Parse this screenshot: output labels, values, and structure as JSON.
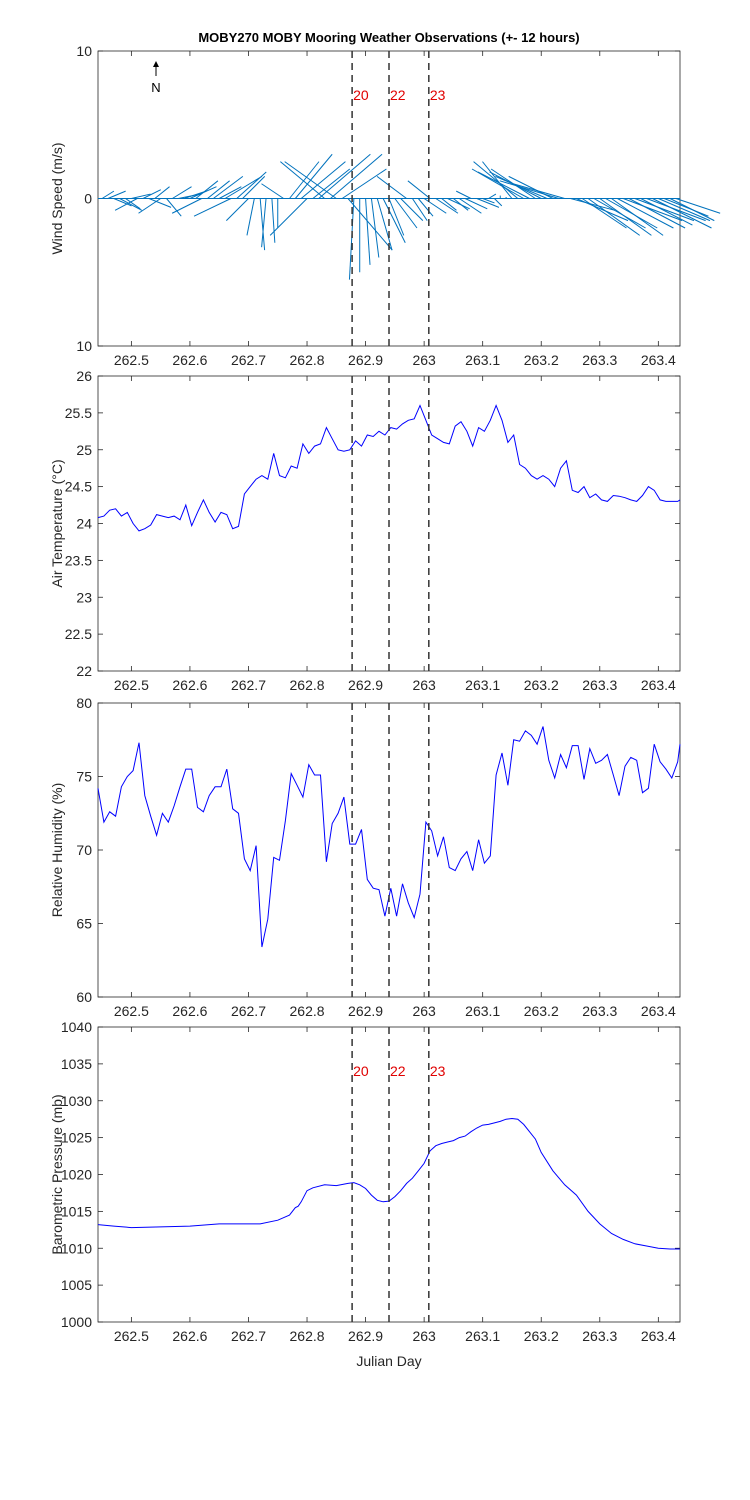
{
  "title": "MOBY270 MOBY Mooring Weather Observations (+- 12 hours)",
  "colors": {
    "series": "#0000ff",
    "wind": "#0072bd",
    "event": "#e00000",
    "axis": "#262626"
  },
  "chart_data": [
    {
      "id": "wind",
      "type": "line",
      "ylabel": "Wind Speed (m/s)",
      "ylim": [
        -10,
        10
      ],
      "yticks": [
        10,
        0,
        -10
      ],
      "ytick_labels": [
        "10",
        "0",
        "10"
      ],
      "xlim": [
        262.443,
        263.437
      ],
      "xticks": [
        262.5,
        262.6,
        262.7,
        262.8,
        262.9,
        263,
        263.1,
        263.2,
        263.3,
        263.4
      ],
      "xtick_labels": [
        "262.5",
        "262.6",
        "262.7",
        "262.8",
        "262.9",
        "263",
        "263.1",
        "263.2",
        "263.3",
        "263.4"
      ],
      "north_label": "N",
      "event_lines": [
        262.877,
        262.94,
        263.008
      ],
      "event_labels": [
        "20",
        "22",
        "23"
      ],
      "vectors": {
        "x": [
          262.45,
          262.46,
          262.47,
          262.48,
          262.49,
          262.5,
          262.51,
          262.52,
          262.53,
          262.54,
          262.55,
          262.56,
          262.57,
          262.58,
          262.59,
          262.6,
          262.61,
          262.62,
          262.63,
          262.64,
          262.65,
          262.66,
          262.67,
          262.68,
          262.69,
          262.7,
          262.71,
          262.72,
          262.73,
          262.74,
          262.75,
          262.76,
          262.77,
          262.78,
          262.79,
          262.8,
          262.81,
          262.82,
          262.83,
          262.84,
          262.85,
          262.86,
          262.87,
          262.88,
          262.89,
          262.9,
          262.91,
          262.92,
          262.93,
          262.94,
          262.95,
          262.96,
          262.97,
          262.98,
          262.99,
          263.0,
          263.01,
          263.02,
          263.03,
          263.04,
          263.05,
          263.06,
          263.07,
          263.08,
          263.09,
          263.1,
          263.11,
          263.12,
          263.13,
          263.14,
          263.15,
          263.16,
          263.17,
          263.18,
          263.19,
          263.2,
          263.21,
          263.22,
          263.23,
          263.24,
          263.25,
          263.26,
          263.27,
          263.28,
          263.29,
          263.3,
          263.31,
          263.32,
          263.33,
          263.34,
          263.35,
          263.36,
          263.37,
          263.38,
          263.39,
          263.4,
          263.41,
          263.42,
          263.43
        ],
        "u": [
          0.8,
          1.2,
          1.2,
          1.5,
          1.0,
          1.3,
          -1.5,
          1.2,
          1.5,
          1.0,
          -1.5,
          1.0,
          1.3,
          1.5,
          1.5,
          1.8,
          1.5,
          -2.0,
          1.5,
          2.0,
          1.5,
          2.5,
          -2.5,
          2.0,
          1.5,
          -1.5,
          -0.5,
          0.3,
          -0.3,
          0.2,
          0.0,
          -1.5,
          2.0,
          2.5,
          3.0,
          -2.5,
          2.5,
          3.5,
          -3.0,
          3.5,
          -3.5,
          3.0,
          3.0,
          -0.3,
          0.0,
          0.3,
          0.5,
          1.0,
          1.5,
          1.0,
          1.5,
          1.5,
          -2.0,
          1.0,
          1.0,
          1.5,
          -1.5,
          1.5,
          1.0,
          1.5,
          1.0,
          1.5,
          1.5,
          -1.0,
          1.5,
          0.8,
          0.5,
          0.5,
          0.0,
          0.0,
          -2.0,
          -3.0,
          -3.5,
          -3.5,
          -3.0,
          -3.5,
          -3.5,
          -3.0,
          -4.0,
          -3.5,
          3.0,
          3.5,
          3.0,
          3.5,
          3.5,
          3.5,
          3.5,
          3.5,
          3.8,
          4.0,
          3.8,
          4.0,
          3.5,
          4.0,
          4.0,
          3.5,
          3.0,
          3.0,
          3.0
        ],
        "v": [
          0.5,
          0.5,
          -0.5,
          -0.8,
          -0.7,
          0.3,
          -0.8,
          0.6,
          -0.6,
          0.8,
          -1.0,
          -1.2,
          0.8,
          0.3,
          0.5,
          0.8,
          1.2,
          -1.0,
          1.2,
          1.5,
          0.8,
          1.5,
          -1.2,
          1.8,
          1.5,
          -1.5,
          -2.5,
          -3.5,
          -3.3,
          -3.0,
          -2.0,
          1.0,
          2.5,
          3.0,
          2.5,
          -2.5,
          2.0,
          3.0,
          2.5,
          3.0,
          2.5,
          2.0,
          -3.5,
          -5.5,
          -5.0,
          -4.5,
          -4.0,
          -3.5,
          -3.0,
          -2.5,
          -2.0,
          -1.5,
          1.5,
          -1.5,
          -1.2,
          -1.0,
          1.2,
          -1.0,
          -0.8,
          -0.7,
          -0.8,
          -1.0,
          -0.7,
          0.5,
          -0.6,
          -0.3,
          0.3,
          -0.5,
          0.2,
          0.1,
          2.5,
          2.5,
          2.0,
          1.8,
          2.0,
          1.8,
          1.5,
          1.5,
          1.2,
          1.0,
          -0.8,
          -1.5,
          -2.0,
          -2.5,
          -2.0,
          -2.5,
          -2.0,
          -2.5,
          -2.0,
          -1.5,
          -2.0,
          -1.5,
          -1.8,
          -1.5,
          -2.0,
          -1.5,
          -1.2,
          -1.5,
          -1.0
        ]
      }
    },
    {
      "id": "temp",
      "type": "line",
      "ylabel": "Air Temperature (°C)",
      "ylim": [
        22,
        26
      ],
      "yticks": [
        26,
        25.5,
        25,
        24.5,
        24,
        23.5,
        23,
        22.5,
        22
      ],
      "ytick_labels": [
        "26",
        "25.5",
        "25",
        "24.5",
        "24",
        "23.5",
        "23",
        "22.5",
        "22"
      ],
      "xlim": [
        262.443,
        263.437
      ],
      "xticks": [
        262.5,
        262.6,
        262.7,
        262.8,
        262.9,
        263,
        263.1,
        263.2,
        263.3,
        263.4
      ],
      "xtick_labels": [
        "262.5",
        "262.6",
        "262.7",
        "262.8",
        "262.9",
        "263",
        "263.1",
        "263.2",
        "263.3",
        "263.4"
      ],
      "event_lines": [
        262.877,
        262.94,
        263.008
      ],
      "event_labels": [],
      "x": [
        262.443,
        262.453,
        262.463,
        262.473,
        262.483,
        262.493,
        262.503,
        262.513,
        262.523,
        262.533,
        262.543,
        262.553,
        262.563,
        262.573,
        262.583,
        262.593,
        262.603,
        262.613,
        262.623,
        262.633,
        262.643,
        262.653,
        262.663,
        262.673,
        262.683,
        262.693,
        262.703,
        262.713,
        262.723,
        262.733,
        262.743,
        262.753,
        262.763,
        262.773,
        262.783,
        262.793,
        262.803,
        262.813,
        262.823,
        262.833,
        262.843,
        262.853,
        262.863,
        262.873,
        262.883,
        262.893,
        262.903,
        262.913,
        262.923,
        262.933,
        262.943,
        262.953,
        262.963,
        262.973,
        262.983,
        262.993,
        263.003,
        263.013,
        263.023,
        263.033,
        263.043,
        263.053,
        263.063,
        263.073,
        263.083,
        263.093,
        263.103,
        263.113,
        263.123,
        263.133,
        263.143,
        263.153,
        263.163,
        263.173,
        263.183,
        263.193,
        263.203,
        263.213,
        263.223,
        263.233,
        263.243,
        263.253,
        263.263,
        263.273,
        263.283,
        263.293,
        263.303,
        263.313,
        263.323,
        263.333,
        263.343,
        263.353,
        263.363,
        263.373,
        263.383,
        263.393,
        263.403,
        263.413,
        263.423,
        263.433,
        263.437
      ],
      "y": [
        24.08,
        24.1,
        24.18,
        24.2,
        24.1,
        24.15,
        24.0,
        23.9,
        23.93,
        23.98,
        24.12,
        24.1,
        24.08,
        24.1,
        24.05,
        24.25,
        23.97,
        24.15,
        24.32,
        24.15,
        24.02,
        24.15,
        24.12,
        23.93,
        23.96,
        24.4,
        24.5,
        24.6,
        24.65,
        24.6,
        24.95,
        24.65,
        24.62,
        24.78,
        24.75,
        25.08,
        24.95,
        25.05,
        25.08,
        25.3,
        25.15,
        25.0,
        24.98,
        25.0,
        25.12,
        25.05,
        25.2,
        25.18,
        25.25,
        25.2,
        25.3,
        25.28,
        25.35,
        25.4,
        25.42,
        25.6,
        25.4,
        25.2,
        25.15,
        25.1,
        25.08,
        25.32,
        25.38,
        25.25,
        25.05,
        25.3,
        25.25,
        25.4,
        25.6,
        25.4,
        25.1,
        25.2,
        24.8,
        24.75,
        24.65,
        24.6,
        24.65,
        24.6,
        24.5,
        24.75,
        24.85,
        24.45,
        24.42,
        24.5,
        24.35,
        24.4,
        24.32,
        24.3,
        24.38,
        24.37,
        24.35,
        24.32,
        24.3,
        24.38,
        24.5,
        24.45,
        24.32,
        24.3,
        24.3,
        24.3,
        24.32
      ]
    },
    {
      "id": "rh",
      "type": "line",
      "ylabel": "Relative Humidity (%)",
      "ylim": [
        60,
        80
      ],
      "yticks": [
        80,
        75,
        70,
        65,
        60
      ],
      "ytick_labels": [
        "80",
        "75",
        "70",
        "65",
        "60"
      ],
      "xlim": [
        262.443,
        263.437
      ],
      "xticks": [
        262.5,
        262.6,
        262.7,
        262.8,
        262.9,
        263,
        263.1,
        263.2,
        263.3,
        263.4
      ],
      "xtick_labels": [
        "262.5",
        "262.6",
        "262.7",
        "262.8",
        "262.9",
        "263",
        "263.1",
        "263.2",
        "263.3",
        "263.4"
      ],
      "event_lines": [
        262.877,
        262.94,
        263.008
      ],
      "event_labels": [],
      "x": [
        262.443,
        262.453,
        262.463,
        262.473,
        262.483,
        262.493,
        262.503,
        262.513,
        262.523,
        262.533,
        262.543,
        262.553,
        262.563,
        262.573,
        262.583,
        262.593,
        262.603,
        262.613,
        262.623,
        262.633,
        262.643,
        262.653,
        262.663,
        262.673,
        262.683,
        262.693,
        262.703,
        262.713,
        262.723,
        262.733,
        262.743,
        262.753,
        262.763,
        262.773,
        262.783,
        262.793,
        262.803,
        262.813,
        262.823,
        262.833,
        262.843,
        262.853,
        262.863,
        262.873,
        262.883,
        262.893,
        262.903,
        262.913,
        262.923,
        262.933,
        262.943,
        262.953,
        262.963,
        262.973,
        262.983,
        262.993,
        263.003,
        263.013,
        263.023,
        263.033,
        263.043,
        263.053,
        263.063,
        263.073,
        263.083,
        263.093,
        263.103,
        263.113,
        263.123,
        263.133,
        263.143,
        263.153,
        263.163,
        263.173,
        263.183,
        263.193,
        263.203,
        263.213,
        263.223,
        263.233,
        263.243,
        263.253,
        263.263,
        263.273,
        263.283,
        263.293,
        263.303,
        263.313,
        263.323,
        263.333,
        263.343,
        263.353,
        263.363,
        263.373,
        263.383,
        263.393,
        263.403,
        263.413,
        263.423,
        263.433,
        263.437
      ],
      "y": [
        74.2,
        71.9,
        72.6,
        72.3,
        74.3,
        75.0,
        75.4,
        77.3,
        73.7,
        72.3,
        71.0,
        72.5,
        71.9,
        73.0,
        74.3,
        75.5,
        75.5,
        72.9,
        72.6,
        73.7,
        74.3,
        74.3,
        75.5,
        72.8,
        72.5,
        69.4,
        68.6,
        70.3,
        63.4,
        65.3,
        69.5,
        69.3,
        72.0,
        75.2,
        74.4,
        73.6,
        75.8,
        75.1,
        75.1,
        69.2,
        71.8,
        72.5,
        73.6,
        70.4,
        70.4,
        71.4,
        68.0,
        67.4,
        67.3,
        65.5,
        67.4,
        65.5,
        67.7,
        66.4,
        65.4,
        67.0,
        71.9,
        71.3,
        69.6,
        70.9,
        68.8,
        68.6,
        69.4,
        69.9,
        68.6,
        70.7,
        69.1,
        69.6,
        75.1,
        76.6,
        74.4,
        77.5,
        77.4,
        78.1,
        77.8,
        77.2,
        78.4,
        76.1,
        74.9,
        76.5,
        75.6,
        77.1,
        77.1,
        74.8,
        76.9,
        75.9,
        76.1,
        76.5,
        75.1,
        73.7,
        75.7,
        76.3,
        76.1,
        73.9,
        74.2,
        77.2,
        76.0,
        75.5,
        74.9,
        76.0,
        77.2
      ]
    },
    {
      "id": "pressure",
      "type": "line",
      "ylabel": "Barometric Pressure (mb)",
      "xlabel": "Julian Day",
      "ylim": [
        1000,
        1040
      ],
      "yticks": [
        1040,
        1035,
        1030,
        1025,
        1020,
        1015,
        1010,
        1005,
        1000
      ],
      "ytick_labels": [
        "1040",
        "1035",
        "1030",
        "1025",
        "1020",
        "1015",
        "1010",
        "1005",
        "1000"
      ],
      "xlim": [
        262.443,
        263.437
      ],
      "xticks": [
        262.5,
        262.6,
        262.7,
        262.8,
        262.9,
        263,
        263.1,
        263.2,
        263.3,
        263.4
      ],
      "xtick_labels": [
        "262.5",
        "262.6",
        "262.7",
        "262.8",
        "262.9",
        "263",
        "263.1",
        "263.2",
        "263.3",
        "263.4"
      ],
      "event_lines": [
        262.877,
        262.94,
        263.008
      ],
      "event_labels": [
        "20",
        "22",
        "23"
      ],
      "x": [
        262.443,
        262.47,
        262.5,
        262.55,
        262.6,
        262.65,
        262.7,
        262.72,
        262.75,
        262.77,
        262.78,
        262.785,
        262.79,
        262.8,
        262.81,
        262.83,
        262.85,
        262.87,
        262.88,
        262.89,
        262.9,
        262.91,
        262.92,
        262.93,
        262.94,
        262.95,
        262.96,
        262.97,
        262.98,
        262.99,
        263.0,
        263.01,
        263.02,
        263.03,
        263.04,
        263.05,
        263.06,
        263.07,
        263.08,
        263.09,
        263.1,
        263.11,
        263.12,
        263.13,
        263.14,
        263.15,
        263.16,
        263.17,
        263.18,
        263.19,
        263.2,
        263.22,
        263.24,
        263.26,
        263.28,
        263.3,
        263.32,
        263.34,
        263.36,
        263.38,
        263.4,
        263.42,
        263.437
      ],
      "y": [
        1013.2,
        1013.0,
        1012.8,
        1012.9,
        1013.0,
        1013.3,
        1013.3,
        1013.3,
        1013.8,
        1014.5,
        1015.5,
        1015.7,
        1016.3,
        1017.8,
        1018.2,
        1018.6,
        1018.5,
        1018.8,
        1018.9,
        1018.6,
        1018.1,
        1017.2,
        1016.5,
        1016.3,
        1016.4,
        1017.0,
        1017.8,
        1018.8,
        1019.5,
        1020.5,
        1021.5,
        1023.2,
        1023.9,
        1024.2,
        1024.4,
        1024.6,
        1025.0,
        1025.2,
        1025.8,
        1026.3,
        1026.7,
        1026.8,
        1027.0,
        1027.2,
        1027.5,
        1027.6,
        1027.5,
        1026.8,
        1025.8,
        1024.8,
        1023.0,
        1020.5,
        1018.6,
        1017.2,
        1015.0,
        1013.3,
        1012.0,
        1011.2,
        1010.6,
        1010.3,
        1010.0,
        1009.9,
        1009.9
      ]
    }
  ]
}
